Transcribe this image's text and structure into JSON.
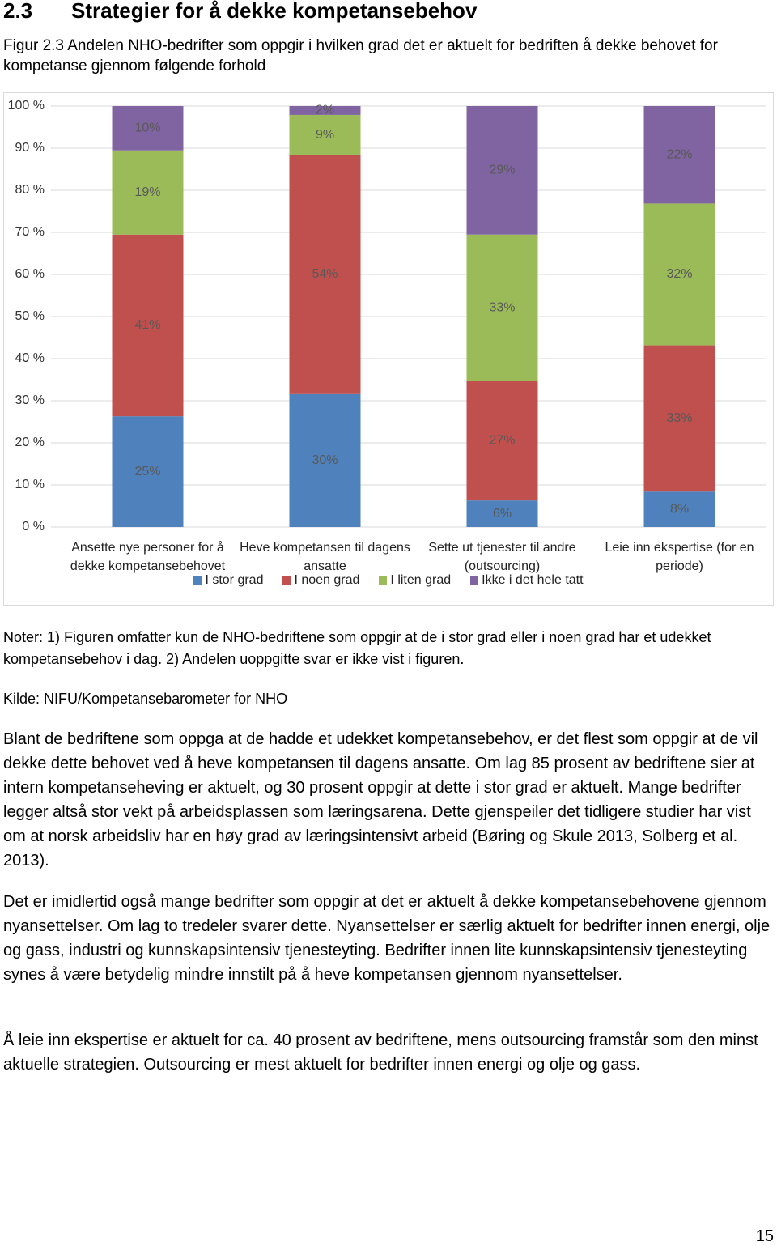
{
  "heading": {
    "number": "2.3",
    "title": "Strategier for å dekke kompetansebehov"
  },
  "figure_caption": "Figur 2.3 Andelen NHO-bedrifter som oppgir i hvilken grad det er aktuelt for bedriften å dekke behovet for kompetanse gjennom følgende forhold",
  "chart_data": {
    "type": "bar",
    "stacked": "percent",
    "categories": [
      "Ansette nye personer for å dekke kompetansebehovet",
      "Heve kompetansen til dagens ansatte",
      "Sette ut tjenester til andre (outsourcing)",
      "Leie inn ekspertise (for en periode)"
    ],
    "series": [
      {
        "name": "I stor grad",
        "color": "#4f81bd",
        "values": [
          25,
          30,
          6,
          8
        ],
        "value_labels": [
          "25%",
          "30%",
          "6%",
          "8%"
        ]
      },
      {
        "name": "I noen grad",
        "color": "#c0504d",
        "values": [
          41,
          54,
          27,
          33
        ],
        "value_labels": [
          "41%",
          "54%",
          "27%",
          "33%"
        ]
      },
      {
        "name": "I liten grad",
        "color": "#9bbb59",
        "values": [
          19,
          9,
          33,
          32
        ],
        "value_labels": [
          "19%",
          "9%",
          "33%",
          "32%"
        ]
      },
      {
        "name": "Ikke i det hele tatt",
        "color": "#8064a2",
        "values": [
          10,
          2,
          29,
          22
        ],
        "value_labels": [
          "10%",
          "2%",
          "29%",
          "22%"
        ]
      }
    ],
    "ylim": [
      0,
      100
    ],
    "yticks": [
      {
        "value": 0,
        "label": "0 %"
      },
      {
        "value": 10,
        "label": "10 %"
      },
      {
        "value": 20,
        "label": "20 %"
      },
      {
        "value": 30,
        "label": "30 %"
      },
      {
        "value": 40,
        "label": "40 %"
      },
      {
        "value": 50,
        "label": "50 %"
      },
      {
        "value": 60,
        "label": "60 %"
      },
      {
        "value": 70,
        "label": "70 %"
      },
      {
        "value": 80,
        "label": "80 %"
      },
      {
        "value": 90,
        "label": "90 %"
      },
      {
        "value": 100,
        "label": "100 %"
      }
    ],
    "grid": true,
    "legend": "bottom"
  },
  "notes": "Noter: 1) Figuren omfatter kun de NHO-bedriftene som oppgir at de i stor grad eller i noen grad har et udekket kompetansebehov i dag. 2) Andelen uoppgitte svar er ikke vist i figuren.",
  "source": "Kilde: NIFU/Kompetansebarometer for NHO",
  "paragraphs": [
    "Blant de bedriftene som oppga at de hadde et udekket kompetansebehov, er det flest som oppgir at de vil dekke dette behovet ved å heve kompetansen til dagens ansatte. Om lag 85 prosent av bedriftene sier at intern kompetanseheving er aktuelt, og 30 prosent oppgir at dette i stor grad er aktuelt. Mange bedrifter legger altså stor vekt på arbeidsplassen som læringsarena. Dette gjenspeiler det tidligere studier har vist om at norsk arbeidsliv har en høy grad av læringsintensivt arbeid (Børing og Skule 2013, Solberg et al. 2013).",
    "Det er imidlertid også mange bedrifter som oppgir at det er aktuelt å dekke kompetansebehovene gjennom nyansettelser. Om lag to tredeler svarer dette. Nyansettelser er særlig aktuelt for bedrifter innen energi, olje og gass, industri og kunnskapsintensiv tjenesteyting. Bedrifter innen lite kunnskapsintensiv tjenesteyting synes å være betydelig mindre innstilt på å heve kompetansen gjennom nyansettelser.",
    "Å leie inn ekspertise er aktuelt for ca. 40 prosent av bedriftene, mens outsourcing framstår som den minst aktuelle strategien. Outsourcing er mest aktuelt for bedrifter innen energi og olje og gass."
  ],
  "page_number": "15"
}
